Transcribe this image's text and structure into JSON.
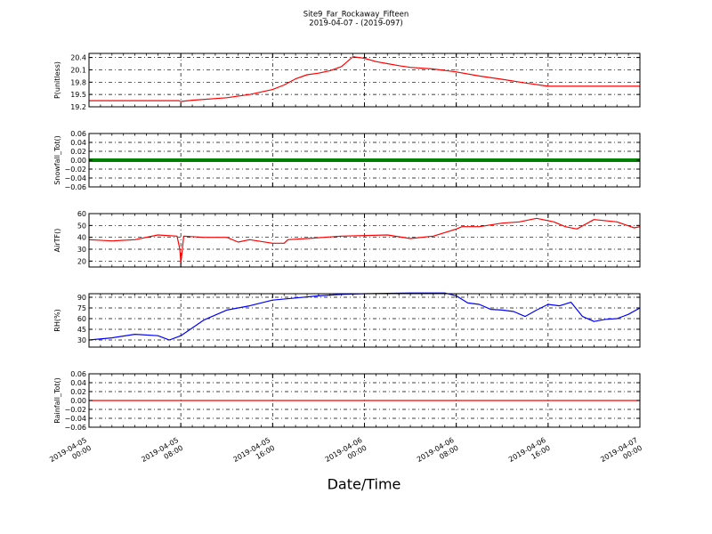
{
  "chart_data": {
    "type": "line",
    "title": "Site9_Far_Rockaway_Fifteen",
    "subtitle": "2019-04-07 - (2019-097)",
    "xlabel": "Date/Time",
    "xlim": [
      "2019-04-05 00:00",
      "2019-04-07 00:00"
    ],
    "x_tick_labels": [
      [
        "2019-04-05",
        "00:00"
      ],
      [
        "2019-04-05",
        "08:00"
      ],
      [
        "2019-04-05",
        "16:00"
      ],
      [
        "2019-04-06",
        "00:00"
      ],
      [
        "2019-04-06",
        "08:00"
      ],
      [
        "2019-04-06",
        "16:00"
      ],
      [
        "2019-04-07",
        "00:00"
      ]
    ],
    "grid": true,
    "panels": [
      {
        "ylabel": "P(unitless)",
        "ylim": [
          19.2,
          20.5
        ],
        "yticks": [
          "19.2",
          "19.5",
          "19.8",
          "20.1",
          "20.4"
        ],
        "color": "#ff0000",
        "x": [
          "2019-04-05 00:00",
          "2019-04-05 04:00",
          "2019-04-05 07:50",
          "2019-04-05 08:00",
          "2019-04-05 09:00",
          "2019-04-05 12:00",
          "2019-04-05 14:00",
          "2019-04-05 16:00",
          "2019-04-05 17:00",
          "2019-04-05 18:00",
          "2019-04-05 19:00",
          "2019-04-05 20:00",
          "2019-04-05 21:00",
          "2019-04-05 22:00",
          "2019-04-05 23:00",
          "2019-04-06 00:00",
          "2019-04-06 01:00",
          "2019-04-06 02:00",
          "2019-04-06 03:00",
          "2019-04-06 04:00",
          "2019-04-06 06:00",
          "2019-04-06 08:00",
          "2019-04-06 10:00",
          "2019-04-06 12:00",
          "2019-04-06 14:00",
          "2019-04-06 16:00",
          "2019-04-06 20:00",
          "2019-04-07 00:00"
        ],
        "values": [
          19.35,
          19.35,
          19.35,
          19.33,
          19.36,
          19.42,
          19.5,
          19.62,
          19.73,
          19.88,
          19.98,
          20.02,
          20.08,
          20.18,
          20.42,
          20.38,
          20.3,
          20.25,
          20.2,
          20.16,
          20.12,
          20.05,
          19.95,
          19.87,
          19.78,
          19.7,
          19.7,
          19.7
        ]
      },
      {
        "ylabel": "Snowfall_Tot()",
        "ylim": [
          -0.06,
          0.06
        ],
        "yticks": [
          "−0.06",
          "−0.04",
          "−0.02",
          "0.00",
          "0.02",
          "0.04",
          "0.06"
        ],
        "color": "#008000",
        "x": [
          "2019-04-05 00:00",
          "2019-04-07 00:00"
        ],
        "values": [
          0.0,
          0.0
        ]
      },
      {
        "ylabel": "AirTF()",
        "ylim": [
          15,
          60
        ],
        "yticks": [
          "20",
          "30",
          "40",
          "50",
          "60"
        ],
        "color": "#ff0000",
        "x": [
          "2019-04-05 00:00",
          "2019-04-05 02:00",
          "2019-04-05 04:00",
          "2019-04-05 06:00",
          "2019-04-05 07:40",
          "2019-04-05 07:55",
          "2019-04-05 08:00",
          "2019-04-05 08:15",
          "2019-04-05 10:00",
          "2019-04-05 12:00",
          "2019-04-05 13:00",
          "2019-04-05 14:00",
          "2019-04-05 16:00",
          "2019-04-05 17:00",
          "2019-04-05 17:20",
          "2019-04-05 19:00",
          "2019-04-05 22:00",
          "2019-04-06 02:00",
          "2019-04-06 04:00",
          "2019-04-06 06:00",
          "2019-04-06 08:00",
          "2019-04-06 08:30",
          "2019-04-06 10:00",
          "2019-04-06 12:00",
          "2019-04-06 13:30",
          "2019-04-06 15:00",
          "2019-04-06 16:30",
          "2019-04-06 17:30",
          "2019-04-06 18:30",
          "2019-04-06 20:00",
          "2019-04-06 22:00",
          "2019-04-06 23:30",
          "2019-04-07 00:00"
        ],
        "values": [
          38,
          37,
          38,
          42,
          41,
          30,
          18,
          41,
          40,
          40,
          36,
          38,
          35,
          35,
          38,
          39,
          41,
          42,
          39,
          41,
          47,
          49,
          49,
          52,
          53,
          56,
          53,
          49,
          47,
          55,
          53,
          48,
          49
        ]
      },
      {
        "ylabel": "RH(%)",
        "ylim": [
          20,
          95
        ],
        "yticks": [
          "30",
          "45",
          "60",
          "75",
          "90"
        ],
        "color": "#0000ff",
        "x": [
          "2019-04-05 00:00",
          "2019-04-05 02:00",
          "2019-04-05 04:00",
          "2019-04-05 06:00",
          "2019-04-05 07:00",
          "2019-04-05 08:00",
          "2019-04-05 10:00",
          "2019-04-05 12:00",
          "2019-04-05 14:00",
          "2019-04-05 16:00",
          "2019-04-05 18:00",
          "2019-04-05 20:00",
          "2019-04-05 22:00",
          "2019-04-06 00:00",
          "2019-04-06 04:00",
          "2019-04-06 07:00",
          "2019-04-06 08:00",
          "2019-04-06 09:00",
          "2019-04-06 10:00",
          "2019-04-06 11:00",
          "2019-04-06 12:00",
          "2019-04-06 13:00",
          "2019-04-06 14:00",
          "2019-04-06 15:00",
          "2019-04-06 16:00",
          "2019-04-06 17:00",
          "2019-04-06 18:00",
          "2019-04-06 19:00",
          "2019-04-06 20:00",
          "2019-04-06 21:00",
          "2019-04-06 22:00",
          "2019-04-06 23:00",
          "2019-04-07 00:00"
        ],
        "values": [
          30,
          33,
          38,
          36,
          30,
          36,
          58,
          72,
          78,
          86,
          89,
          92,
          94,
          95,
          96,
          96,
          92,
          82,
          80,
          73,
          72,
          70,
          63,
          72,
          80,
          78,
          83,
          63,
          56,
          59,
          60,
          66,
          75
        ]
      },
      {
        "ylabel": "Rainfall_Tot()",
        "ylim": [
          -0.06,
          0.06
        ],
        "yticks": [
          "−0.06",
          "−0.04",
          "−0.02",
          "0.00",
          "0.02",
          "0.04",
          "0.06"
        ],
        "color": "#ff0000",
        "x": [
          "2019-04-05 00:00",
          "2019-04-07 00:00"
        ],
        "values": [
          0.0,
          0.0
        ]
      }
    ]
  }
}
